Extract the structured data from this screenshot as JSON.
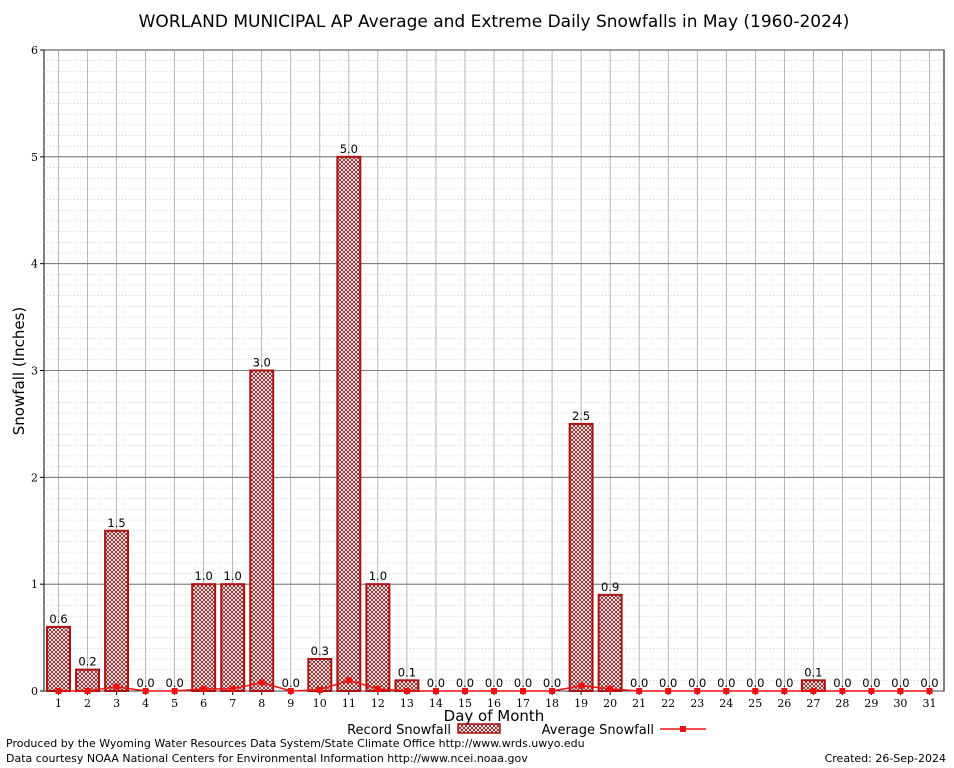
{
  "chart_data": {
    "type": "bar",
    "title": "WORLAND MUNICIPAL AP Average and Extreme Daily Snowfalls in May (1960-2024)",
    "xlabel": "Day of Month",
    "ylabel": "Snowfall (Inches)",
    "ylim": [
      0,
      6
    ],
    "yticks": [
      "0",
      "1",
      "2",
      "3",
      "4",
      "5",
      "6"
    ],
    "categories": [
      "1",
      "2",
      "3",
      "4",
      "5",
      "6",
      "7",
      "8",
      "9",
      "10",
      "11",
      "12",
      "13",
      "14",
      "15",
      "16",
      "17",
      "18",
      "19",
      "20",
      "21",
      "22",
      "23",
      "24",
      "25",
      "26",
      "27",
      "28",
      "29",
      "30",
      "31"
    ],
    "series": [
      {
        "name": "Record Snowfall",
        "type": "bar",
        "values": [
          0.6,
          0.2,
          1.5,
          0.0,
          0.0,
          1.0,
          1.0,
          3.0,
          0.0,
          0.3,
          5.0,
          1.0,
          0.1,
          0.0,
          0.0,
          0.0,
          0.0,
          0.0,
          2.5,
          0.9,
          0.0,
          0.0,
          0.0,
          0.0,
          0.0,
          0.0,
          0.1,
          0.0,
          0.0,
          0.0,
          0.0
        ],
        "labels": [
          "0.6",
          "0.2",
          "1.5",
          "0.0",
          "0.0",
          "1.0",
          "1.0",
          "3.0",
          "0.0",
          "0.3",
          "5.0",
          "1.0",
          "0.1",
          "0.0",
          "0.0",
          "0.0",
          "0.0",
          "0.0",
          "2.5",
          "0.9",
          "0.0",
          "0.0",
          "0.0",
          "0.0",
          "0.0",
          "0.0",
          "0.1",
          "0.0",
          "0.0",
          "0.0",
          "0.0"
        ],
        "color": "#aa1111"
      },
      {
        "name": "Average Snowfall",
        "type": "line",
        "values": [
          0.0,
          0.0,
          0.04,
          0.0,
          0.0,
          0.02,
          0.02,
          0.08,
          0.0,
          0.01,
          0.1,
          0.02,
          0.0,
          0.0,
          0.0,
          0.0,
          0.0,
          0.0,
          0.05,
          0.02,
          0.0,
          0.0,
          0.0,
          0.0,
          0.0,
          0.0,
          0.0,
          0.0,
          0.0,
          0.0,
          0.0
        ],
        "color": "#ee1111"
      }
    ],
    "grid": true,
    "legend": "bottom-center"
  },
  "footer": {
    "produced_by": "Produced by the Wyoming Water Resources Data System/State Climate Office http://www.wrds.uwyo.edu",
    "courtesy": "Data courtesy NOAA National Centers for Environmental Information http://www.ncei.noaa.gov",
    "created": "Created:  26-Sep-2024"
  }
}
